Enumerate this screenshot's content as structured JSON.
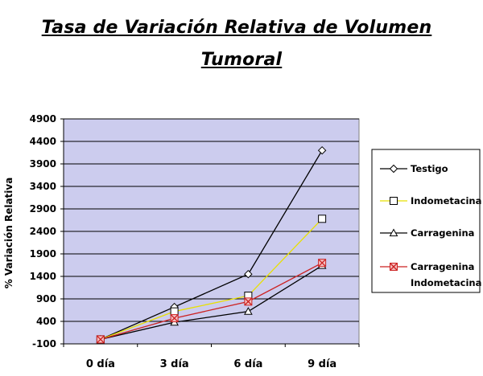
{
  "title_line1": "Tasa de Variación Relativa de Volumen",
  "title_line2": "Tumoral",
  "chart_data": {
    "type": "line",
    "title": "Tasa de Variación Relativa de Volumen Tumoral",
    "ylabel": "% Variación Relativa",
    "xlabel": "",
    "categories": [
      "0 día",
      "3 día",
      "6 día",
      "9 día"
    ],
    "ylim": [
      -100,
      4900
    ],
    "yticks": [
      -100,
      400,
      900,
      1400,
      1900,
      2400,
      2900,
      3400,
      3900,
      4400,
      4900
    ],
    "grid": true,
    "legend_position": "right",
    "plot_background": "#ccccee",
    "series": [
      {
        "name": "Testigo",
        "values": [
          0,
          720,
          1450,
          4200
        ],
        "color": "#000000",
        "marker": "diamond"
      },
      {
        "name": "Indometacina",
        "values": [
          0,
          620,
          970,
          2680
        ],
        "color": "#e8e000",
        "marker": "square"
      },
      {
        "name": "Carragenina",
        "values": [
          0,
          380,
          620,
          1640
        ],
        "color": "#000000",
        "marker": "triangle"
      },
      {
        "name": "Carragenina Indometacina",
        "name_lines": [
          "Carragenina",
          "Indometacina"
        ],
        "values": [
          0,
          470,
          840,
          1700
        ],
        "color": "#cc2222",
        "marker": "xsquare"
      }
    ]
  }
}
